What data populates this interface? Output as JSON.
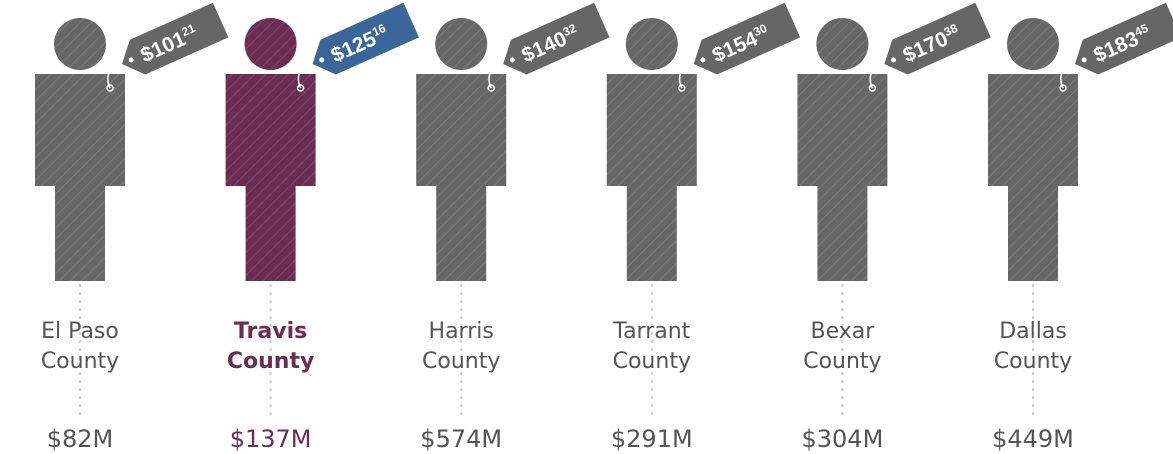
{
  "counties": [
    {
      "name": [
        "El Paso",
        "County"
      ],
      "dollars": "$101",
      "cents": "21",
      "total": "$82M",
      "color": "#666666",
      "tag_color": "#666666",
      "text_color": "#555555",
      "bold": false
    },
    {
      "name": [
        "Travis",
        "County"
      ],
      "dollars": "$125",
      "cents": "16",
      "total": "$137M",
      "color": "#6b2d52",
      "tag_color": "#3b6699",
      "text_color": "#6b2d52",
      "bold": true
    },
    {
      "name": [
        "Harris",
        "County"
      ],
      "dollars": "$140",
      "cents": "32",
      "total": "$574M",
      "color": "#666666",
      "tag_color": "#666666",
      "text_color": "#555555",
      "bold": false
    },
    {
      "name": [
        "Tarrant",
        "County"
      ],
      "dollars": "$154",
      "cents": "30",
      "total": "$291M",
      "color": "#666666",
      "tag_color": "#666666",
      "text_color": "#555555",
      "bold": false
    },
    {
      "name": [
        "Bexar",
        "County"
      ],
      "dollars": "$170",
      "cents": "38",
      "total": "$304M",
      "color": "#666666",
      "tag_color": "#666666",
      "text_color": "#555555",
      "bold": false
    },
    {
      "name": [
        "Dallas",
        "County"
      ],
      "dollars": "$183",
      "cents": "45",
      "total": "$449M",
      "color": "#666666",
      "tag_color": "#666666",
      "text_color": "#555555",
      "bold": false
    }
  ]
}
